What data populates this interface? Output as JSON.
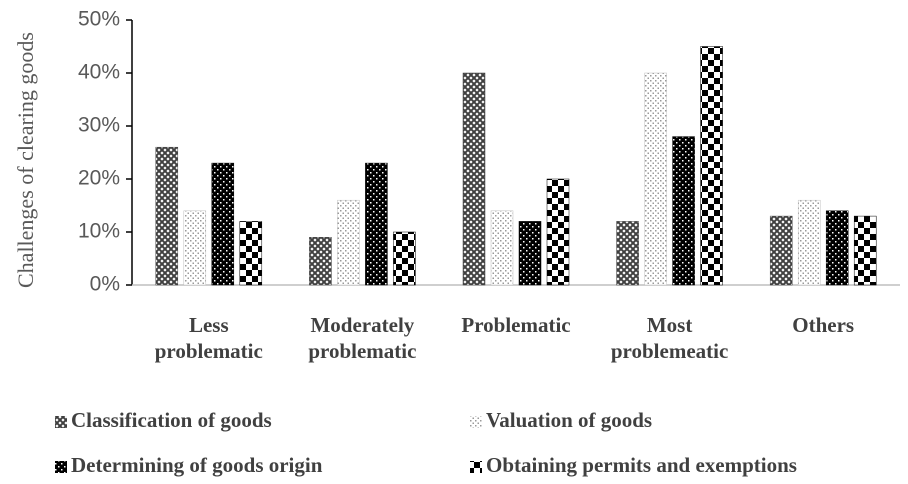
{
  "chart_data": {
    "type": "bar",
    "ylabel": "Challenges of clearing goods",
    "categories": [
      "Less problematic",
      "Moderately problematic",
      "Problematic",
      "Most problemeatic",
      "Others"
    ],
    "series": [
      {
        "name": "Classification of goods",
        "color": "#404040",
        "values": [
          26,
          9,
          40,
          12,
          13
        ]
      },
      {
        "name": "Valuation of goods",
        "color": "#bfbfbf",
        "values": [
          14,
          16,
          14,
          40,
          16
        ]
      },
      {
        "name": "Determining of goods origin",
        "color": "#000000",
        "values": [
          23,
          23,
          12,
          28,
          14
        ]
      },
      {
        "name": "Obtaining permits and exemptions",
        "color": "#000000",
        "values": [
          12,
          10,
          20,
          45,
          13
        ]
      }
    ],
    "ylim": [
      0,
      50
    ],
    "yticks": [
      {
        "value": 0,
        "label": "0%"
      },
      {
        "value": 10,
        "label": "10%"
      },
      {
        "value": 20,
        "label": "20%"
      },
      {
        "value": 30,
        "label": "30%"
      },
      {
        "value": 40,
        "label": "40%"
      },
      {
        "value": 50,
        "label": "50%"
      }
    ],
    "legend": "bottom"
  }
}
